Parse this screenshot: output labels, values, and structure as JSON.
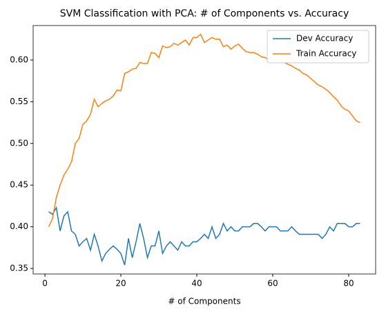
{
  "chart_data": {
    "type": "line",
    "title": "SVM Classification with PCA: # of Components  vs. Accuracy",
    "xlabel": "# of Components",
    "x": [
      1,
      2,
      3,
      4,
      5,
      6,
      7,
      8,
      9,
      10,
      11,
      12,
      13,
      14,
      15,
      16,
      17,
      18,
      19,
      20,
      21,
      22,
      23,
      24,
      25,
      26,
      27,
      28,
      29,
      30,
      31,
      32,
      33,
      34,
      35,
      36,
      37,
      38,
      39,
      40,
      41,
      42,
      43,
      44,
      45,
      46,
      47,
      48,
      49,
      50,
      51,
      52,
      53,
      54,
      55,
      56,
      57,
      58,
      59,
      60,
      61,
      62,
      63,
      64,
      65,
      66,
      67,
      68,
      69,
      70,
      71,
      72,
      73,
      74,
      75,
      76,
      77,
      78,
      79,
      80,
      81,
      82,
      83
    ],
    "series": [
      {
        "name": "Dev Accuracy",
        "color": "#1f77b4",
        "values": [
          0.418,
          0.415,
          0.423,
          0.395,
          0.413,
          0.418,
          0.395,
          0.391,
          0.377,
          0.382,
          0.386,
          0.372,
          0.391,
          0.377,
          0.359,
          0.368,
          0.373,
          0.377,
          0.373,
          0.368,
          0.354,
          0.386,
          0.363,
          0.382,
          0.404,
          0.386,
          0.363,
          0.377,
          0.377,
          0.395,
          0.368,
          0.377,
          0.382,
          0.377,
          0.372,
          0.382,
          0.377,
          0.377,
          0.382,
          0.382,
          0.386,
          0.391,
          0.386,
          0.4,
          0.386,
          0.391,
          0.404,
          0.395,
          0.4,
          0.395,
          0.395,
          0.4,
          0.4,
          0.4,
          0.404,
          0.404,
          0.4,
          0.395,
          0.4,
          0.4,
          0.4,
          0.395,
          0.395,
          0.395,
          0.4,
          0.395,
          0.391,
          0.391,
          0.391,
          0.391,
          0.391,
          0.391,
          0.386,
          0.391,
          0.4,
          0.395,
          0.404,
          0.404,
          0.404,
          0.4,
          0.4,
          0.404,
          0.404
        ]
      },
      {
        "name": "Train Accuracy",
        "color": "#ff7f0e",
        "values": [
          0.4,
          0.41,
          0.435,
          0.45,
          0.462,
          0.469,
          0.478,
          0.5,
          0.506,
          0.523,
          0.527,
          0.535,
          0.553,
          0.544,
          0.548,
          0.551,
          0.553,
          0.557,
          0.564,
          0.563,
          0.584,
          0.586,
          0.589,
          0.59,
          0.597,
          0.596,
          0.596,
          0.609,
          0.608,
          0.603,
          0.617,
          0.615,
          0.616,
          0.62,
          0.618,
          0.621,
          0.624,
          0.618,
          0.627,
          0.627,
          0.631,
          0.621,
          0.624,
          0.627,
          0.625,
          0.625,
          0.616,
          0.618,
          0.613,
          0.617,
          0.619,
          0.614,
          0.61,
          0.609,
          0.609,
          0.607,
          0.604,
          0.603,
          0.6,
          0.6,
          0.602,
          0.6,
          0.597,
          0.595,
          0.593,
          0.59,
          0.588,
          0.584,
          0.582,
          0.578,
          0.574,
          0.57,
          0.568,
          0.565,
          0.561,
          0.556,
          0.552,
          0.545,
          0.541,
          0.539,
          0.533,
          0.527,
          0.525
        ]
      }
    ],
    "xlim": [
      -3.1,
      87.1
    ],
    "xticks": [
      0,
      20,
      40,
      60,
      80
    ],
    "ylim": [
      0.3434,
      0.6414
    ],
    "yticks": [
      0.35,
      {
        "value": 0.4,
        "label": "0.40"
      },
      0.45,
      {
        "value": 0.5,
        "label": "0.50"
      },
      0.55,
      {
        "value": 0.6,
        "label": "0.60"
      }
    ],
    "legend": "upper right"
  }
}
